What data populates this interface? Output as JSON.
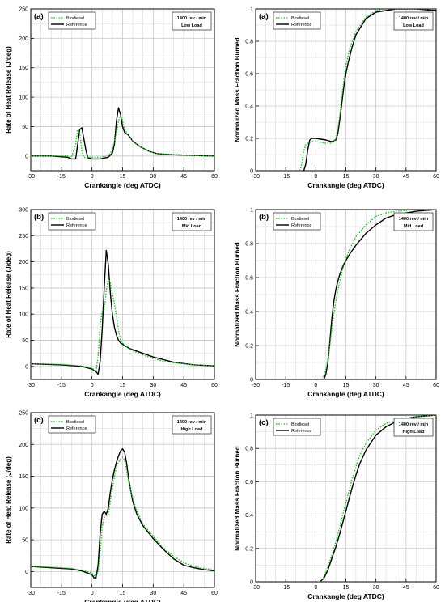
{
  "figure": {
    "legend_biodiesel": "Biodiesel",
    "legend_reference": "Reference",
    "speed_label": "1400 rev / min",
    "colors": {
      "biodiesel": "#22bb22",
      "reference": "#000000",
      "grid": "#c8c8c8"
    }
  },
  "chart_data": [
    {
      "type": "line",
      "panel": "(a)",
      "load": "Low Load",
      "xlabel": "Crankangle (deg ATDC)",
      "ylabel": "Rate of Heat Release (J/deg)",
      "xlim": [
        -30,
        60
      ],
      "ylim": [
        -25,
        250
      ],
      "xticks": [
        -30,
        -15,
        0,
        15,
        30,
        45,
        60
      ],
      "xtick_labels": [
        "-30",
        "-15",
        "0",
        "15",
        "30",
        "45",
        "60"
      ],
      "yticks": [
        0,
        50,
        100,
        150,
        200,
        250
      ],
      "ytick_labels": [
        "0",
        "50",
        "100",
        "150",
        "200",
        "250"
      ],
      "grid": true,
      "legend_position": "top-left",
      "series": [
        {
          "name": "Biodiesel",
          "style": "dotted",
          "x": [
            -30,
            -20,
            -12,
            -10,
            -8,
            -7,
            -6,
            -5,
            -4,
            -3,
            -2,
            0,
            4,
            8,
            10,
            12,
            13,
            14,
            15,
            16,
            18,
            20,
            24,
            28,
            32,
            40,
            50,
            60
          ],
          "y": [
            0,
            0,
            0,
            -2,
            20,
            45,
            40,
            10,
            -2,
            -3,
            -2,
            -2,
            -2,
            0,
            10,
            40,
            60,
            70,
            60,
            45,
            35,
            25,
            15,
            8,
            4,
            2,
            1,
            0
          ]
        },
        {
          "name": "Reference",
          "style": "solid",
          "x": [
            -30,
            -20,
            -12,
            -10,
            -8,
            -7,
            -6,
            -5,
            -4,
            -3,
            -2,
            0,
            4,
            8,
            10,
            11,
            12,
            13,
            14,
            15,
            16,
            18,
            20,
            24,
            28,
            32,
            40,
            50,
            60
          ],
          "y": [
            0,
            0,
            -2,
            -5,
            -5,
            20,
            45,
            48,
            30,
            10,
            -3,
            -5,
            -5,
            -2,
            5,
            20,
            60,
            82,
            70,
            50,
            40,
            35,
            25,
            15,
            8,
            4,
            2,
            1,
            0
          ]
        }
      ]
    },
    {
      "type": "line",
      "panel": "(a)",
      "load": "Low Load",
      "xlabel": "Crankangle (deg ATDC)",
      "ylabel": "Normalized Mass Fraction Burned",
      "xlim": [
        -30,
        60
      ],
      "ylim": [
        0,
        1
      ],
      "xticks": [
        -30,
        -15,
        0,
        15,
        30,
        45,
        60
      ],
      "xtick_labels": [
        "-30",
        "-15",
        "0",
        "15",
        "30",
        "45",
        "60"
      ],
      "yticks": [
        0,
        0.2,
        0.4,
        0.6,
        0.8,
        1
      ],
      "ytick_labels": [
        "0",
        "0.2",
        "0.4",
        "0.6",
        "0.8",
        "1"
      ],
      "grid": true,
      "legend_position": "top-left",
      "series": [
        {
          "name": "Biodiesel",
          "style": "dotted",
          "x": [
            -8,
            -7,
            -6,
            -5,
            -4,
            -2,
            0,
            5,
            8,
            10,
            11,
            12,
            13,
            14,
            15,
            17,
            20,
            25,
            30,
            35,
            40,
            50,
            60
          ],
          "y": [
            0,
            0.04,
            0.12,
            0.16,
            0.17,
            0.18,
            0.18,
            0.17,
            0.17,
            0.2,
            0.26,
            0.35,
            0.46,
            0.56,
            0.65,
            0.76,
            0.86,
            0.95,
            0.99,
            1,
            1,
            1,
            1
          ]
        },
        {
          "name": "Reference",
          "style": "solid",
          "x": [
            -6,
            -5,
            -4,
            -3,
            -2,
            0,
            5,
            8,
            10,
            11,
            12,
            13,
            14,
            15,
            16,
            18,
            20,
            25,
            30,
            35,
            40,
            50,
            60
          ],
          "y": [
            0,
            0.04,
            0.13,
            0.19,
            0.2,
            0.2,
            0.19,
            0.18,
            0.19,
            0.23,
            0.32,
            0.42,
            0.52,
            0.6,
            0.66,
            0.76,
            0.84,
            0.94,
            0.98,
            0.99,
            1,
            1,
            0.99
          ]
        }
      ]
    },
    {
      "type": "line",
      "panel": "(b)",
      "load": "Mid Load",
      "xlabel": "Crankangle (deg ATDC)",
      "ylabel": "Rate of Heat Release (J/deg)",
      "xlim": [
        -30,
        60
      ],
      "ylim": [
        -25,
        300
      ],
      "xticks": [
        -30,
        -15,
        0,
        15,
        30,
        45,
        60
      ],
      "xtick_labels": [
        "-30",
        "-15",
        "0",
        "15",
        "30",
        "45",
        "60"
      ],
      "yticks": [
        0,
        50,
        100,
        150,
        200,
        250,
        300
      ],
      "ytick_labels": [
        "0",
        "50",
        "100",
        "150",
        "200",
        "250",
        "300"
      ],
      "grid": true,
      "legend_position": "top-left",
      "series": [
        {
          "name": "Biodiesel",
          "style": "dotted",
          "x": [
            -30,
            -15,
            -5,
            0,
            2,
            3,
            4,
            5,
            6,
            7,
            8,
            9,
            10,
            11,
            12,
            13,
            14,
            16,
            20,
            25,
            30,
            35,
            40,
            50,
            60
          ],
          "y": [
            5,
            4,
            1,
            -3,
            -10,
            20,
            80,
            105,
            110,
            145,
            168,
            160,
            140,
            120,
            95,
            70,
            50,
            40,
            30,
            22,
            15,
            10,
            7,
            3,
            1
          ]
        },
        {
          "name": "Reference",
          "style": "solid",
          "x": [
            -30,
            -15,
            -5,
            0,
            2,
            3,
            4,
            5,
            6,
            7,
            8,
            9,
            10,
            11,
            12,
            13,
            14,
            16,
            18,
            20,
            25,
            30,
            35,
            40,
            50,
            60
          ],
          "y": [
            5,
            3,
            0,
            -5,
            -10,
            -15,
            10,
            70,
            150,
            222,
            195,
            140,
            100,
            75,
            60,
            50,
            45,
            40,
            35,
            32,
            25,
            18,
            13,
            8,
            3,
            1
          ]
        }
      ]
    },
    {
      "type": "line",
      "panel": "(b)",
      "load": "Mid Load",
      "xlabel": "Crankangle (deg ATDC)",
      "ylabel": "Normalized Mass Fraction Burned",
      "xlim": [
        -30,
        60
      ],
      "ylim": [
        0,
        1
      ],
      "xticks": [
        -30,
        -15,
        0,
        15,
        30,
        45,
        60
      ],
      "xtick_labels": [
        "-30",
        "-15",
        "0",
        "15",
        "30",
        "45",
        "60"
      ],
      "yticks": [
        0,
        0.2,
        0.4,
        0.6,
        0.8,
        1
      ],
      "ytick_labels": [
        "0",
        "0.2",
        "0.4",
        "0.6",
        "0.8",
        "1"
      ],
      "grid": true,
      "legend_position": "top-left",
      "series": [
        {
          "name": "Biodiesel",
          "style": "dotted",
          "x": [
            3,
            4,
            5,
            6,
            7,
            8,
            9,
            10,
            11,
            12,
            13,
            14,
            15,
            17,
            20,
            25,
            30,
            35,
            40,
            50,
            60
          ],
          "y": [
            0,
            0.02,
            0.06,
            0.12,
            0.2,
            0.3,
            0.39,
            0.46,
            0.52,
            0.58,
            0.63,
            0.67,
            0.71,
            0.77,
            0.84,
            0.91,
            0.96,
            0.98,
            0.99,
            1,
            1
          ]
        },
        {
          "name": "Reference",
          "style": "solid",
          "x": [
            4,
            5,
            6,
            7,
            8,
            9,
            10,
            11,
            12,
            13,
            14,
            15,
            17,
            20,
            25,
            30,
            35,
            40,
            45,
            50,
            60
          ],
          "y": [
            0,
            0.03,
            0.1,
            0.22,
            0.36,
            0.46,
            0.53,
            0.58,
            0.62,
            0.65,
            0.68,
            0.7,
            0.74,
            0.79,
            0.86,
            0.91,
            0.95,
            0.97,
            0.98,
            0.99,
            1
          ]
        }
      ]
    },
    {
      "type": "line",
      "panel": "(c)",
      "load": "High Load",
      "xlabel": "Crankangle (deg ATDC)",
      "ylabel": "Rate of Heat Release (J/deg)",
      "xlim": [
        -30,
        60
      ],
      "ylim": [
        -25,
        250
      ],
      "xticks": [
        -30,
        -15,
        0,
        15,
        30,
        45,
        60
      ],
      "xtick_labels": [
        "-30",
        "-15",
        "0",
        "15",
        "30",
        "45",
        "60"
      ],
      "yticks": [
        0,
        50,
        100,
        150,
        200,
        250
      ],
      "ytick_labels": [
        "0",
        "50",
        "100",
        "150",
        "200",
        "250"
      ],
      "grid": true,
      "legend_position": "top-left",
      "series": [
        {
          "name": "Biodiesel",
          "style": "dotted",
          "x": [
            -30,
            -20,
            -10,
            -5,
            0,
            1,
            2,
            3,
            4,
            5,
            6,
            7,
            8,
            9,
            10,
            11,
            12,
            13,
            14,
            15,
            16,
            17,
            18,
            20,
            22,
            25,
            30,
            35,
            40,
            45,
            50,
            55,
            60
          ],
          "y": [
            8,
            7,
            5,
            2,
            -2,
            -6,
            -8,
            0,
            30,
            70,
            85,
            88,
            90,
            110,
            130,
            150,
            165,
            172,
            177,
            180,
            175,
            160,
            140,
            115,
            95,
            75,
            55,
            38,
            24,
            14,
            8,
            5,
            2
          ]
        },
        {
          "name": "Reference",
          "style": "solid",
          "x": [
            -30,
            -20,
            -10,
            -5,
            0,
            1,
            2,
            3,
            4,
            5,
            6,
            7,
            8,
            9,
            10,
            11,
            12,
            13,
            14,
            15,
            16,
            17,
            18,
            20,
            22,
            25,
            30,
            35,
            40,
            45,
            50,
            55,
            60
          ],
          "y": [
            8,
            6,
            4,
            1,
            -5,
            -10,
            -10,
            10,
            60,
            90,
            95,
            90,
            100,
            125,
            145,
            160,
            172,
            182,
            190,
            193,
            188,
            170,
            145,
            110,
            90,
            72,
            52,
            35,
            20,
            10,
            6,
            3,
            1
          ]
        }
      ]
    },
    {
      "type": "line",
      "panel": "(c)",
      "load": "High Load",
      "xlabel": "Crankangle (deg ATDC)",
      "ylabel": "Normalized Mass Fraction Burned",
      "xlim": [
        -30,
        60
      ],
      "ylim": [
        0,
        1
      ],
      "xticks": [
        -30,
        -15,
        0,
        15,
        30,
        45,
        60
      ],
      "xtick_labels": [
        "-30",
        "-15",
        "0",
        "15",
        "30",
        "45",
        "60"
      ],
      "yticks": [
        0,
        0.2,
        0.4,
        0.6,
        0.8,
        1
      ],
      "ytick_labels": [
        "0",
        "0.2",
        "0.4",
        "0.6",
        "0.8",
        "1"
      ],
      "grid": true,
      "legend_position": "top-left",
      "series": [
        {
          "name": "Biodiesel",
          "style": "dotted",
          "x": [
            2,
            4,
            6,
            8,
            10,
            12,
            14,
            16,
            18,
            20,
            22,
            25,
            30,
            35,
            40,
            45,
            50,
            60
          ],
          "y": [
            0,
            0.03,
            0.09,
            0.16,
            0.24,
            0.33,
            0.43,
            0.52,
            0.61,
            0.69,
            0.76,
            0.83,
            0.91,
            0.95,
            0.97,
            0.98,
            0.99,
            1
          ]
        },
        {
          "name": "Reference",
          "style": "solid",
          "x": [
            2,
            4,
            6,
            8,
            10,
            12,
            14,
            16,
            18,
            20,
            22,
            25,
            30,
            35,
            40,
            45,
            50,
            60
          ],
          "y": [
            0,
            0.02,
            0.07,
            0.14,
            0.21,
            0.29,
            0.38,
            0.47,
            0.56,
            0.64,
            0.71,
            0.79,
            0.88,
            0.93,
            0.96,
            0.98,
            0.99,
            1
          ]
        }
      ]
    }
  ]
}
